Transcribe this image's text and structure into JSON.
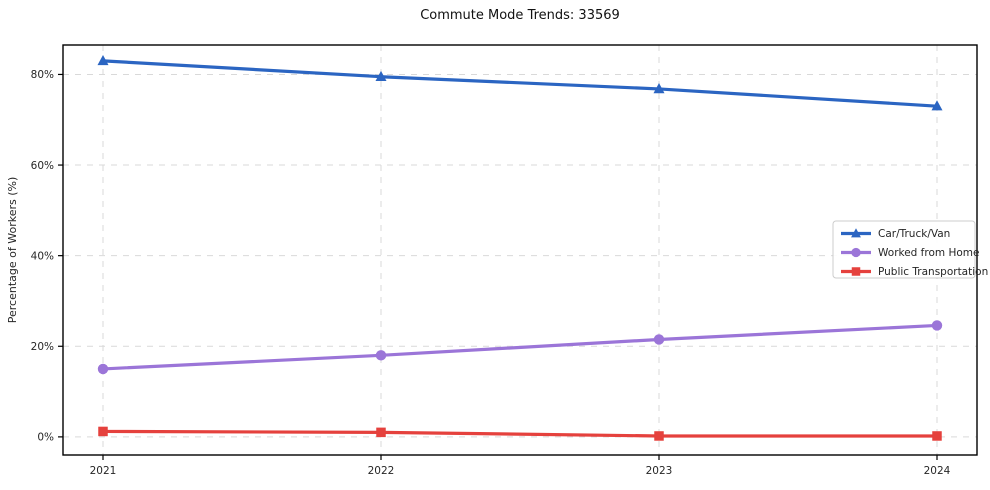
{
  "title": "Commute Mode Trends: 33569",
  "chart_data": {
    "type": "line",
    "title": "Commute Mode Trends: 33569",
    "x": [
      2021,
      2022,
      2023,
      2024
    ],
    "x_tick_labels": [
      "2021",
      "2022",
      "2023",
      "2024"
    ],
    "series": [
      {
        "name": "Car/Truck/Van",
        "marker": "triangle",
        "color": "#2b65c2",
        "values": [
          83.0,
          79.5,
          76.8,
          73.0
        ]
      },
      {
        "name": "Worked from Home",
        "marker": "circle",
        "color": "#9b75d8",
        "values": [
          15.0,
          18.0,
          21.5,
          24.6
        ]
      },
      {
        "name": "Public Transportation",
        "marker": "square",
        "color": "#e5413d",
        "values": [
          1.2,
          1.0,
          0.2,
          0.2
        ]
      }
    ],
    "xlabel": "",
    "ylabel": "Percentage of Workers (%)",
    "y_ticks": [
      0,
      20,
      40,
      60,
      80
    ],
    "y_tick_labels": [
      "0%",
      "20%",
      "40%",
      "60%",
      "80%"
    ],
    "ylim": [
      -4,
      86.5
    ],
    "grid": true,
    "grid_style": "dashed",
    "legend_position": "center-right"
  },
  "colors": {
    "background": "#ffffff",
    "grid": "#d9d9d9",
    "axis": "#000000",
    "tick_text": "#262626",
    "legend_border": "#cccccc",
    "legend_background": "#ffffff"
  }
}
